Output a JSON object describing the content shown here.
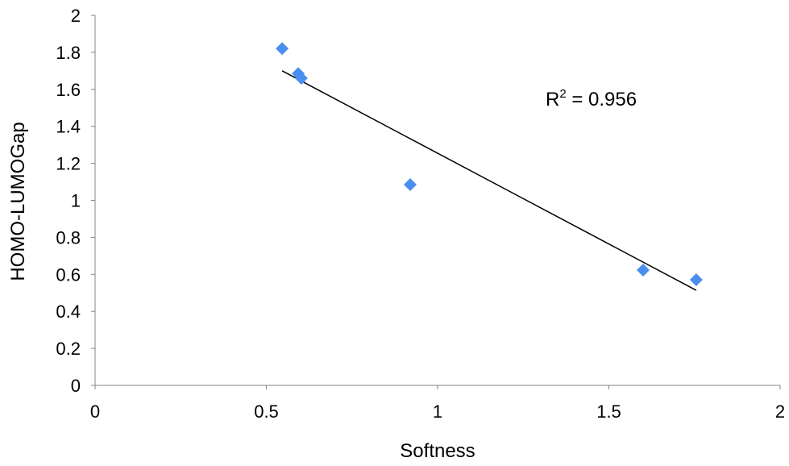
{
  "chart_data": {
    "type": "scatter",
    "title": "",
    "xlabel": "Softness",
    "ylabel": "HOMO-LUMOGap",
    "xlim": [
      0,
      2
    ],
    "ylim": [
      0,
      2
    ],
    "xticks": [
      0,
      0.5,
      1,
      1.5,
      2
    ],
    "xtick_labels": [
      "0",
      "0.5",
      "1",
      "1.5",
      "2"
    ],
    "yticks": [
      0,
      0.2,
      0.4,
      0.6,
      0.8,
      1,
      1.2,
      1.4,
      1.6,
      1.8,
      2
    ],
    "ytick_labels": [
      "0",
      "0.2",
      "0.4",
      "0.6",
      "0.8",
      "1",
      "1.2",
      "1.4",
      "1.6",
      "1.8",
      "2"
    ],
    "grid": false,
    "series": [
      {
        "name": "HOMO-LUMOGap",
        "color": "#4a8ff0",
        "marker": "diamond",
        "points": [
          [
            0.546,
            1.82
          ],
          [
            0.593,
            1.685
          ],
          [
            0.602,
            1.66
          ],
          [
            0.92,
            1.085
          ],
          [
            1.6,
            0.623
          ],
          [
            1.755,
            0.571
          ]
        ]
      }
    ],
    "trendline": {
      "type": "linear",
      "x": [
        0.546,
        1.755
      ],
      "y": [
        1.7,
        0.514
      ],
      "color": "#000000"
    },
    "annotation": {
      "prefix": "R",
      "superscript": "2",
      "text": " = 0.956"
    }
  }
}
